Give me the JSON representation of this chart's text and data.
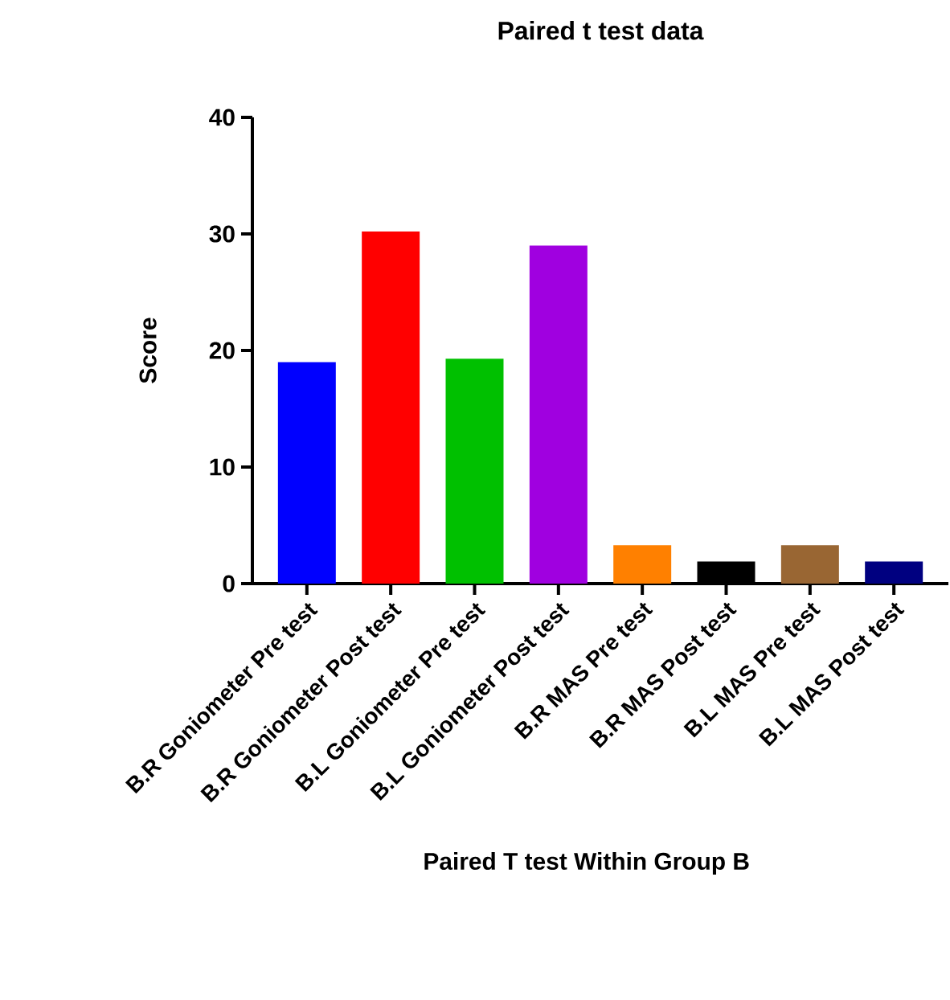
{
  "chart_data": {
    "type": "bar",
    "title": "Paired t test data",
    "xlabel": "Paired T test Within Group B",
    "ylabel": "Score",
    "categories": [
      "B.R Goniometer Pre test",
      "B.R Goniometer Post test",
      "B.L Goniometer Pre test",
      "B.L Goniometer Post test",
      "B.R MAS Pre test",
      "B.R MAS Post test",
      "B.L MAS Pre test",
      "B.L MAS Post test"
    ],
    "values": [
      19.0,
      30.2,
      19.3,
      29.0,
      3.3,
      1.9,
      3.3,
      1.9
    ],
    "colors": [
      "#0000ff",
      "#ff0000",
      "#00c000",
      "#a000e0",
      "#ff8000",
      "#000000",
      "#996633",
      "#000080"
    ],
    "ylim": [
      0,
      40
    ],
    "yticks": [
      0,
      10,
      20,
      30,
      40
    ],
    "grid": false
  }
}
